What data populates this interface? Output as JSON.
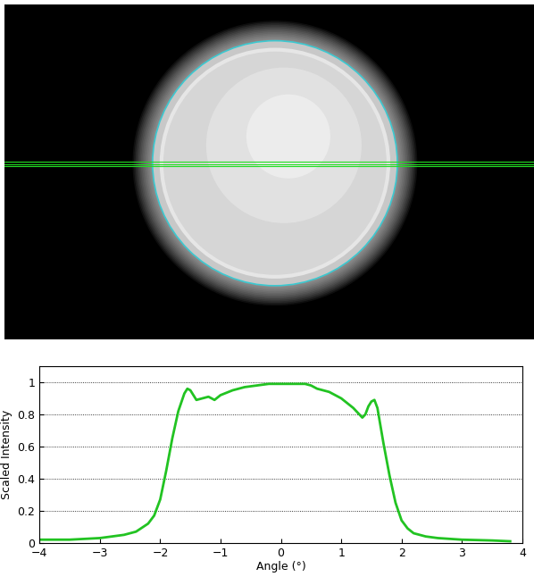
{
  "chart_data": {
    "type": "line",
    "xlabel": "Angle (°)",
    "ylabel": "Scaled Intensity",
    "x": [
      -4,
      -3.5,
      -3,
      -2.6,
      -2.4,
      -2.2,
      -2.1,
      -2.0,
      -1.9,
      -1.8,
      -1.7,
      -1.6,
      -1.55,
      -1.5,
      -1.45,
      -1.4,
      -1.3,
      -1.2,
      -1.1,
      -1.0,
      -0.8,
      -0.6,
      -0.4,
      -0.2,
      0,
      0.2,
      0.4,
      0.5,
      0.6,
      0.8,
      1.0,
      1.1,
      1.2,
      1.3,
      1.35,
      1.4,
      1.45,
      1.5,
      1.55,
      1.6,
      1.7,
      1.8,
      1.9,
      2.0,
      2.1,
      2.2,
      2.4,
      2.6,
      3.0,
      3.5,
      3.8
    ],
    "values": [
      0.02,
      0.02,
      0.03,
      0.05,
      0.07,
      0.12,
      0.17,
      0.27,
      0.45,
      0.65,
      0.82,
      0.93,
      0.96,
      0.95,
      0.92,
      0.89,
      0.9,
      0.91,
      0.89,
      0.92,
      0.95,
      0.97,
      0.98,
      0.99,
      0.99,
      0.99,
      0.99,
      0.98,
      0.96,
      0.94,
      0.9,
      0.87,
      0.84,
      0.8,
      0.78,
      0.8,
      0.85,
      0.88,
      0.89,
      0.84,
      0.62,
      0.42,
      0.25,
      0.14,
      0.09,
      0.06,
      0.04,
      0.03,
      0.02,
      0.015,
      0.01
    ],
    "color": "#22c322",
    "xlim": [
      -4,
      4
    ],
    "xticks": [
      -4,
      -3,
      -2,
      -1,
      0,
      1,
      2,
      3,
      4
    ],
    "ylim": [
      0,
      1.1
    ],
    "yticks": [
      0,
      0.2,
      0.4,
      0.6,
      0.8,
      1
    ],
    "grid": true
  }
}
